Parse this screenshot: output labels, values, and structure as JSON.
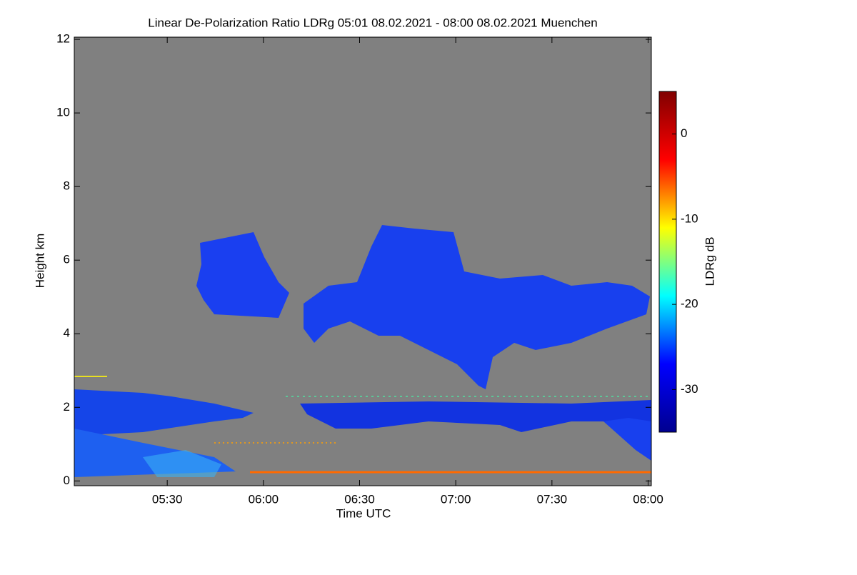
{
  "chart_data": {
    "type": "heatmap",
    "title": "Linear De-Polarization Ratio LDRg   05:01 08.02.2021 - 08:00 08.02.2021 Muenchen",
    "x_label": "Time UTC",
    "y_label": "Height km",
    "colorbar_label": "LDRg dB",
    "xlim": [
      301,
      481
    ],
    "xticks": [
      {
        "value": 330,
        "label": "05:30"
      },
      {
        "value": 360,
        "label": "06:00"
      },
      {
        "value": 390,
        "label": "06:30"
      },
      {
        "value": 420,
        "label": "07:00"
      },
      {
        "value": 450,
        "label": "07:30"
      },
      {
        "value": 480,
        "label": "08:00"
      }
    ],
    "ylim": [
      -0.13,
      12.06
    ],
    "yticks": [
      0,
      2,
      4,
      6,
      8,
      10,
      12
    ],
    "zlim": [
      -35,
      5
    ],
    "zticks": [
      0,
      -10,
      -20,
      -30
    ],
    "colormap": [
      "#00008f",
      "#0000ff",
      "#00ffff",
      "#ffff00",
      "#ff0000",
      "#800000"
    ],
    "background": "#808080"
  }
}
